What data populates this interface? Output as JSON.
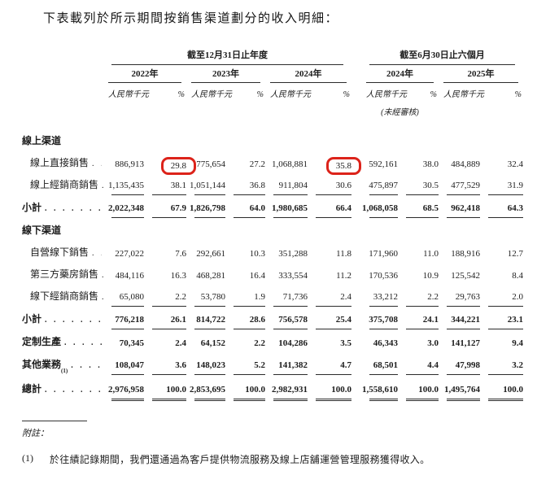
{
  "title": "下表載列於所示期間按銷售渠道劃分的收入明細：",
  "colors": {
    "highlight_box": "#dc231a",
    "rule": "#2b2b2b"
  },
  "table": {
    "col_groups": [
      {
        "label": "截至12月31日止年度",
        "years": [
          "2022年",
          "2023年",
          "2024年"
        ]
      },
      {
        "label": "截至6月30日止六個月",
        "years": [
          "2024年",
          "2025年"
        ]
      }
    ],
    "unit_label": "人民幣千元",
    "pct_label": "%",
    "unaudited_note": "(未經審核)",
    "leader_dots": ". . . . . . . . . . . . . . . . . . . . . . . . .",
    "rows": [
      {
        "type": "section",
        "label": "線上渠道"
      },
      {
        "type": "item",
        "label": "線上直接銷售",
        "values": [
          "886,913",
          "29.8",
          "775,654",
          "27.2",
          "1,068,881",
          "35.8",
          "592,161",
          "38.0",
          "484,889",
          "32.4"
        ],
        "highlight_cols": [
          1,
          5
        ]
      },
      {
        "type": "item",
        "label": "線上經銷商銷售",
        "underline": "single",
        "values": [
          "1,135,435",
          "38.1",
          "1,051,144",
          "36.8",
          "911,804",
          "30.6",
          "475,897",
          "30.5",
          "477,529",
          "31.9"
        ]
      },
      {
        "type": "subtotal",
        "label": "小計",
        "underline": "single",
        "values": [
          "2,022,348",
          "67.9",
          "1,826,798",
          "64.0",
          "1,980,685",
          "66.4",
          "1,068,058",
          "68.5",
          "962,418",
          "64.3"
        ]
      },
      {
        "type": "section",
        "label": "線下渠道"
      },
      {
        "type": "item",
        "label": "自營線下銷售",
        "values": [
          "227,022",
          "7.6",
          "292,661",
          "10.3",
          "351,288",
          "11.8",
          "171,960",
          "11.0",
          "188,916",
          "12.7"
        ]
      },
      {
        "type": "item",
        "label": "第三方藥房銷售",
        "values": [
          "484,116",
          "16.3",
          "468,281",
          "16.4",
          "333,554",
          "11.2",
          "170,536",
          "10.9",
          "125,542",
          "8.4"
        ]
      },
      {
        "type": "item",
        "label": "線下經銷商銷售",
        "underline": "single",
        "values": [
          "65,080",
          "2.2",
          "53,780",
          "1.9",
          "71,736",
          "2.4",
          "33,212",
          "2.2",
          "29,763",
          "2.0"
        ]
      },
      {
        "type": "subtotal",
        "label": "小計",
        "underline": "single",
        "values": [
          "776,218",
          "26.1",
          "814,722",
          "28.6",
          "756,578",
          "25.4",
          "375,708",
          "24.1",
          "344,221",
          "23.1"
        ]
      },
      {
        "type": "primary",
        "label": "定制生產",
        "values": [
          "70,345",
          "2.4",
          "64,152",
          "2.2",
          "104,286",
          "3.5",
          "46,343",
          "3.0",
          "141,127",
          "9.4"
        ]
      },
      {
        "type": "primary",
        "label": "其他業務",
        "sup": "(1)",
        "underline": "single",
        "values": [
          "108,047",
          "3.6",
          "148,023",
          "5.2",
          "141,382",
          "4.7",
          "68,501",
          "4.4",
          "47,998",
          "3.2"
        ]
      },
      {
        "type": "grand_total",
        "label": "總計",
        "underline": "double",
        "values": [
          "2,976,958",
          "100.0",
          "2,853,695",
          "100.0",
          "2,982,931",
          "100.0",
          "1,558,610",
          "100.0",
          "1,495,764",
          "100.0"
        ]
      }
    ]
  },
  "notes": {
    "header": "附註：",
    "items": [
      {
        "marker": "(1)",
        "text": "於往績記錄期間，我們還通過為客戶提供物流服務及線上店舖運營管理服務獲得收入。"
      }
    ]
  }
}
